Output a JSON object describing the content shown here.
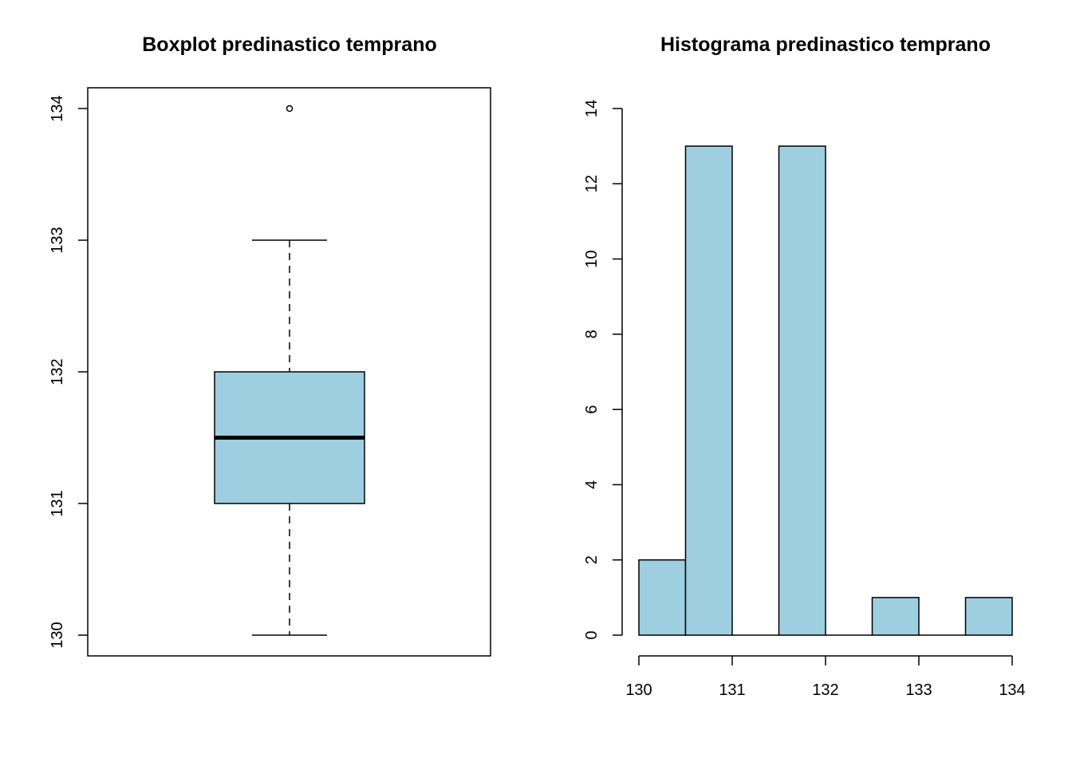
{
  "chart_data": [
    {
      "type": "boxplot",
      "title": "Boxplot predinastico temprano",
      "xlabel": "",
      "ylabel": "",
      "ylim": [
        130,
        134
      ],
      "y_ticks": [
        "130",
        "131",
        "132",
        "133",
        "134"
      ],
      "box": {
        "whisker_low": 130,
        "q1": 131,
        "median": 131.5,
        "q3": 132,
        "whisker_high": 133,
        "outliers": [
          134
        ]
      },
      "fill_color": "#9ecfe0",
      "frame": true
    },
    {
      "type": "bar",
      "title": "Histograma predinastico temprano",
      "xlabel": "",
      "ylabel": "",
      "bins": [
        {
          "x0": 130,
          "x1": 130.5,
          "count": 2
        },
        {
          "x0": 130.5,
          "x1": 131,
          "count": 13
        },
        {
          "x0": 131,
          "x1": 131.5,
          "count": 0
        },
        {
          "x0": 131.5,
          "x1": 132,
          "count": 13
        },
        {
          "x0": 132,
          "x1": 132.5,
          "count": 0
        },
        {
          "x0": 132.5,
          "x1": 133,
          "count": 1
        },
        {
          "x0": 133,
          "x1": 133.5,
          "count": 0
        },
        {
          "x0": 133.5,
          "x1": 134,
          "count": 1
        }
      ],
      "xlim": [
        130,
        134
      ],
      "ylim": [
        0,
        14
      ],
      "x_ticks": [
        "130",
        "131",
        "132",
        "133",
        "134"
      ],
      "y_ticks": [
        "0",
        "2",
        "4",
        "6",
        "8",
        "10",
        "12",
        "14"
      ],
      "fill_color": "#9ecfe0"
    }
  ]
}
